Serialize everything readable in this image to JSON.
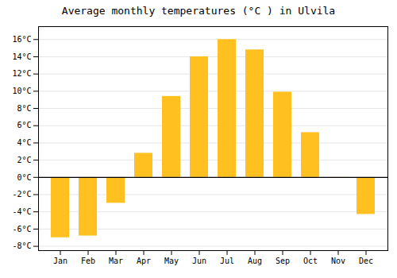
{
  "chart_data": {
    "type": "bar",
    "title": "Average monthly temperatures (°C ) in Ulvila",
    "categories": [
      "Jan",
      "Feb",
      "Mar",
      "Apr",
      "May",
      "Jun",
      "Jul",
      "Aug",
      "Sep",
      "Oct",
      "Nov",
      "Dec"
    ],
    "values": [
      -7.0,
      -6.8,
      -3.0,
      2.8,
      9.4,
      14.0,
      16.0,
      14.8,
      9.9,
      5.2,
      -0.1,
      -4.3
    ],
    "color": "#FFC020",
    "ylim": [
      -8.5,
      17.5
    ],
    "yticks": [
      {
        "value": -8,
        "label": "-8°C"
      },
      {
        "value": -6,
        "label": "-6°C"
      },
      {
        "value": -4,
        "label": "-4°C"
      },
      {
        "value": -2,
        "label": "-2°C"
      },
      {
        "value": 0,
        "label": "0°C"
      },
      {
        "value": 2,
        "label": "2°C"
      },
      {
        "value": 4,
        "label": "4°C"
      },
      {
        "value": 6,
        "label": "6°C"
      },
      {
        "value": 8,
        "label": "8°C"
      },
      {
        "value": 10,
        "label": "10°C"
      },
      {
        "value": 12,
        "label": "12°C"
      },
      {
        "value": 14,
        "label": "14°C"
      },
      {
        "value": 16,
        "label": "16°C"
      }
    ],
    "grid": true
  }
}
